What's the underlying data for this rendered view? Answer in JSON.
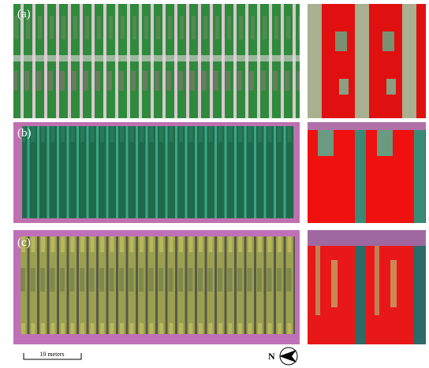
{
  "panels": [
    {
      "label": "(a)"
    },
    {
      "label": "(b)"
    },
    {
      "label": "(c)"
    }
  ],
  "scale_bar": {
    "label": "10 meters"
  },
  "compass": {
    "label": "N"
  }
}
